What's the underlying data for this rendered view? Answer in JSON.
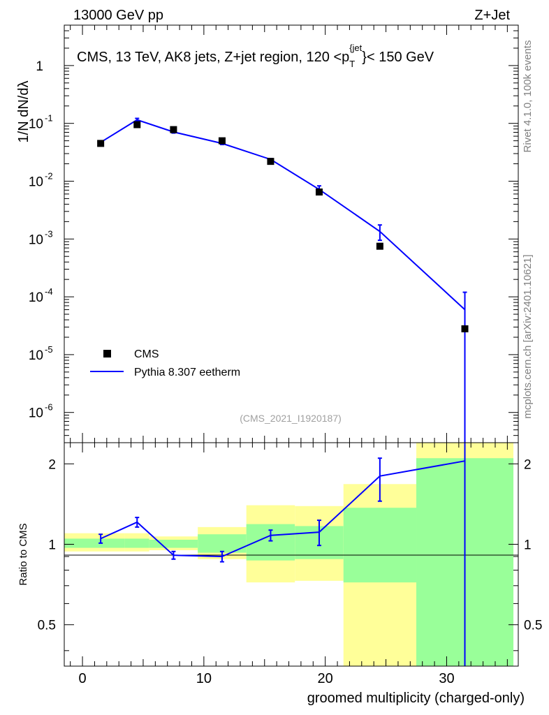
{
  "header": {
    "left_title": "13000 GeV pp",
    "right_title": "Z+Jet"
  },
  "side_labels": {
    "rivet": "Rivet 4.1.0,  100k events",
    "mcplots": "mcplots.cern.ch [arXiv:2401.10621]"
  },
  "main_panel": {
    "title": "CMS, 13 TeV, AK8 jets, Z+jet region, 120 <p",
    "title_sup": "{jet",
    "title_sub": "T",
    "title_tail": "}< 150 GeV",
    "watermark": "(CMS_2021_I1920187)",
    "ylabel": "1/N dN/dλ",
    "ytick_labels": [
      "1",
      "10",
      "10",
      "10",
      "10",
      "10",
      "10"
    ],
    "ytick_exponents": [
      "",
      "-1",
      "-2",
      "-3",
      "-4",
      "-5",
      "-6"
    ]
  },
  "ratio_panel": {
    "ylabel": "Ratio to CMS",
    "ytick_labels": [
      "0.5",
      "1",
      "2"
    ],
    "xlabel": "groomed multiplicity (charged-only)",
    "xtick_labels": [
      "0",
      "10",
      "20",
      "30"
    ]
  },
  "legend": {
    "entries": [
      {
        "label": "CMS",
        "color": "#000000",
        "marker": "square"
      },
      {
        "label": "Pythia 8.307 eetherm",
        "color": "#0000ff",
        "marker": "line"
      }
    ]
  },
  "chart_data": {
    "type": "line",
    "title": "CMS, 13 TeV, AK8 jets, Z+jet region, 120 < pT(jet) < 150 GeV",
    "xlabel": "groomed multiplicity (charged-only)",
    "ylabel": "1/N dN/dλ",
    "xlim": [
      -1.5,
      35.9
    ],
    "ylim": [
      3e-07,
      5
    ],
    "yscale": "log",
    "bins": [
      [
        -1.5,
        3.5
      ],
      [
        3.5,
        5.5
      ],
      [
        5.5,
        9.5
      ],
      [
        9.5,
        13.5
      ],
      [
        13.5,
        17.5
      ],
      [
        17.5,
        21.5
      ],
      [
        21.5,
        27.5
      ],
      [
        27.5,
        35.5
      ]
    ],
    "x": [
      1.5,
      4.5,
      7.5,
      11.5,
      15.5,
      19.5,
      24.5,
      31.5
    ],
    "series": [
      {
        "name": "CMS",
        "color": "#000000",
        "values": [
          0.045,
          0.095,
          0.078,
          0.05,
          0.022,
          0.0065,
          0.00075,
          2.8e-05
        ]
      },
      {
        "name": "Pythia 8.307 eetherm",
        "color": "#0000ff",
        "values": [
          0.047,
          0.115,
          0.071,
          0.045,
          0.0238,
          0.0072,
          0.00135,
          6e-05
        ],
        "err_up": [
          0.0025,
          0.007,
          0.003,
          0.002,
          0.0008,
          0.0011,
          0.0004,
          6e-05
        ],
        "err_down": [
          0.0025,
          0.007,
          0.003,
          0.002,
          0.0008,
          0.0011,
          0.0004,
          6e-05
        ]
      }
    ],
    "ratio": {
      "ylabel": "Ratio to CMS",
      "ylim": [
        0.35,
        2.4
      ],
      "yscale": "log",
      "reference": 1,
      "values": [
        1.05,
        1.21,
        0.91,
        0.9,
        1.08,
        1.11,
        1.8,
        2.05
      ],
      "err_up": [
        0.04,
        0.05,
        0.03,
        0.04,
        0.05,
        0.12,
        0.3,
        1.0
      ],
      "err_down": [
        0.04,
        0.05,
        0.03,
        0.04,
        0.05,
        0.12,
        0.35,
        2.0
      ],
      "band_yellow": [
        [
          0.94,
          1.1
        ],
        [
          0.94,
          1.1
        ],
        [
          0.95,
          1.07
        ],
        [
          0.88,
          1.16
        ],
        [
          0.72,
          1.4
        ],
        [
          0.73,
          1.39
        ],
        [
          0.3,
          1.68
        ],
        [
          0.3,
          2.5
        ]
      ],
      "band_green": [
        [
          0.97,
          1.05
        ],
        [
          0.97,
          1.05
        ],
        [
          0.97,
          1.04
        ],
        [
          0.93,
          1.09
        ],
        [
          0.87,
          1.19
        ],
        [
          0.88,
          1.17
        ],
        [
          0.72,
          1.37
        ],
        [
          0.3,
          2.1
        ]
      ]
    }
  }
}
